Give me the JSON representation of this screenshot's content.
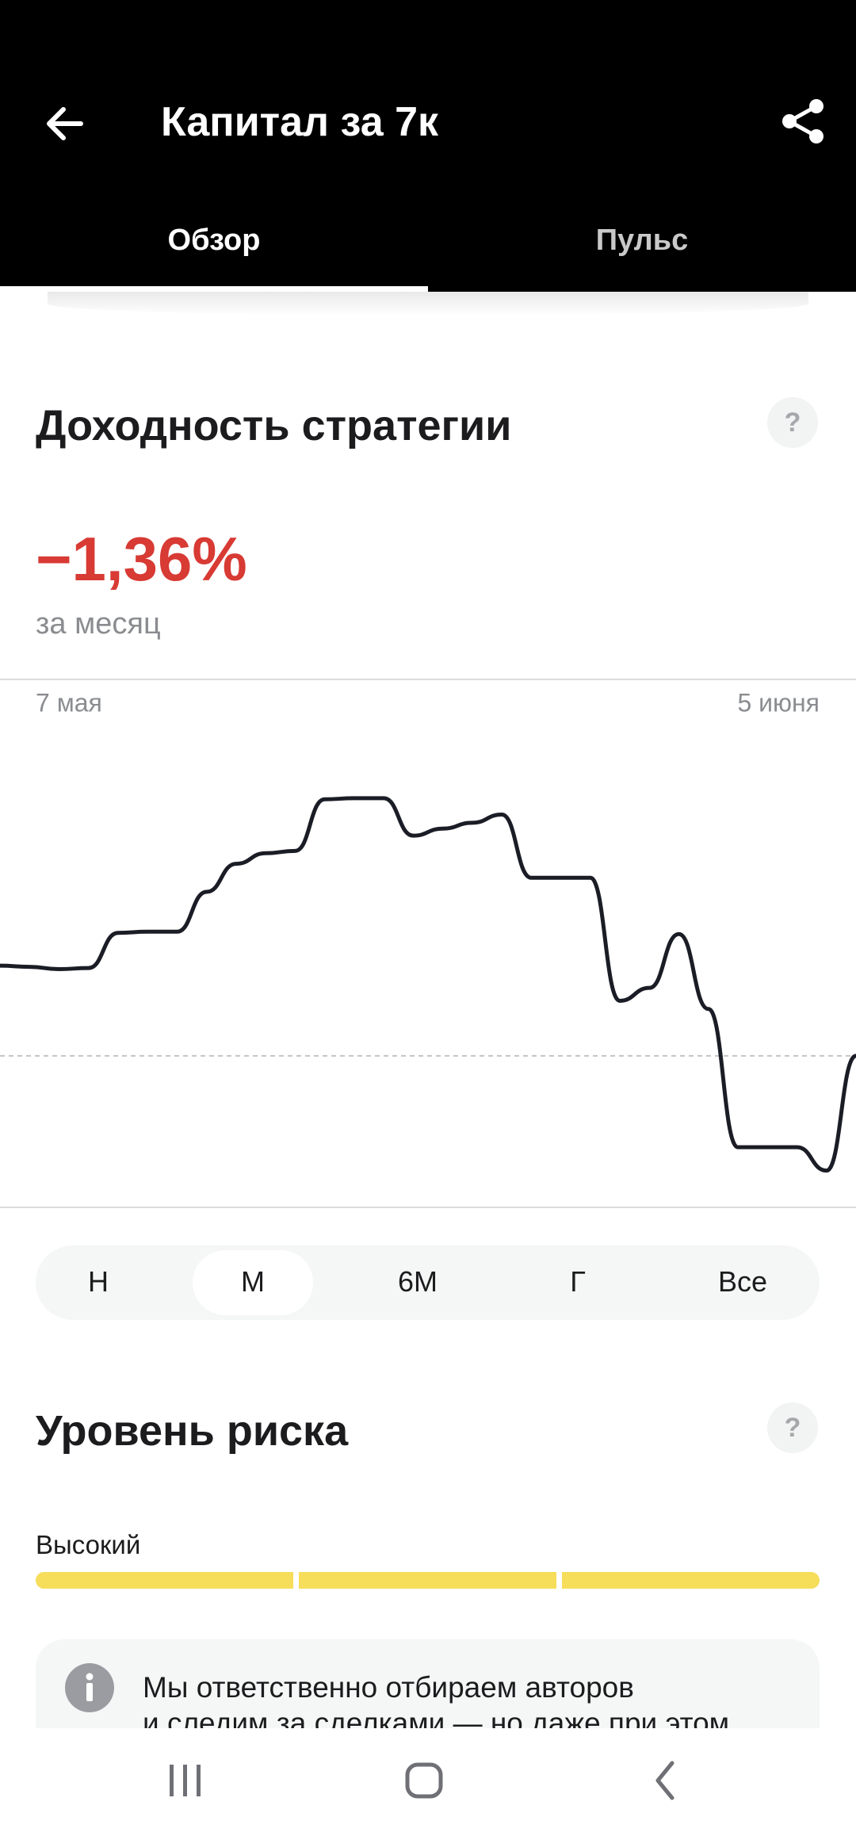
{
  "header": {
    "title": "Капитал за 7к",
    "tabs": [
      "Обзор",
      "Пульс"
    ]
  },
  "returns": {
    "heading": "Доходность стратегии",
    "help": "?",
    "value": "−1,36%",
    "period": "за месяц"
  },
  "chart_data": {
    "type": "line",
    "categories": [
      "7 мая",
      null,
      null,
      null,
      null,
      null,
      null,
      null,
      null,
      null,
      null,
      null,
      null,
      null,
      null,
      null,
      null,
      null,
      null,
      null,
      null,
      null,
      null,
      null,
      null,
      null,
      null,
      null,
      null,
      "5 июня"
    ],
    "values": [
      51.25,
      51,
      50.5,
      50.75,
      58.25,
      58.5,
      58.5,
      67,
      73,
      75.25,
      75.75,
      86.75,
      87,
      87,
      79,
      80.5,
      81.75,
      83.5,
      70,
      70,
      70,
      43.75,
      46.5,
      58,
      42,
      12.5,
      12.5,
      12.5,
      7.5,
      32
    ],
    "color": "#1b1d26",
    "ylim": [
      0,
      100
    ],
    "reference_line": 32
  },
  "periods": {
    "options": [
      "Н",
      "М",
      "6М",
      "Г",
      "Все"
    ],
    "selected": 1
  },
  "risk": {
    "heading": "Уровень риска",
    "help": "?",
    "level": "Высокий",
    "segments": 3
  },
  "info": {
    "lines": [
      "Мы ответственно отбираем авторов",
      "и следим за сделками — но даже при этом"
    ]
  }
}
